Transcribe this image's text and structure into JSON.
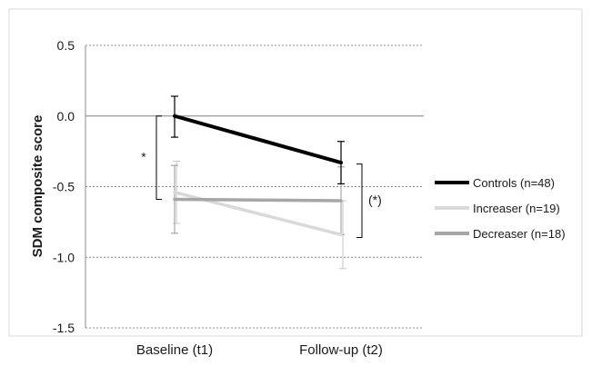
{
  "chart_data": {
    "type": "line",
    "title": "",
    "xlabel": "",
    "ylabel": "SDM composite score",
    "categories": [
      "Baseline (t1)",
      "Follow-up (t2)"
    ],
    "ylim": [
      -1.5,
      0.5
    ],
    "yticks": [
      0.5,
      0.0,
      -0.5,
      -1.0,
      -1.5
    ],
    "ytick_labels": [
      "0.5",
      "0.0",
      "-0.5",
      "-1.0",
      "-1.5"
    ],
    "grid": "horizontal dotted",
    "legend_position": "right",
    "series": [
      {
        "name": "Controls  (n=48)",
        "color": "#000000",
        "values": [
          0.0,
          -0.33
        ],
        "err_low": [
          -0.15,
          -0.48
        ],
        "err_high": [
          0.14,
          -0.18
        ]
      },
      {
        "name": "Increaser (n=19)",
        "color": "#d9d9d9",
        "values": [
          -0.54,
          -0.84
        ],
        "err_low": [
          -0.76,
          -1.08
        ],
        "err_high": [
          -0.32,
          -0.6
        ]
      },
      {
        "name": "Decreaser (n=18)",
        "color": "#a6a6a6",
        "values": [
          -0.59,
          -0.6
        ],
        "err_low": [
          -0.83,
          -0.84
        ],
        "err_high": [
          -0.35,
          -0.36
        ]
      }
    ],
    "annotations": [
      {
        "text": "*",
        "at": "Baseline (t1)"
      },
      {
        "text": "(*)",
        "at": "Follow-up (t2)"
      }
    ]
  }
}
